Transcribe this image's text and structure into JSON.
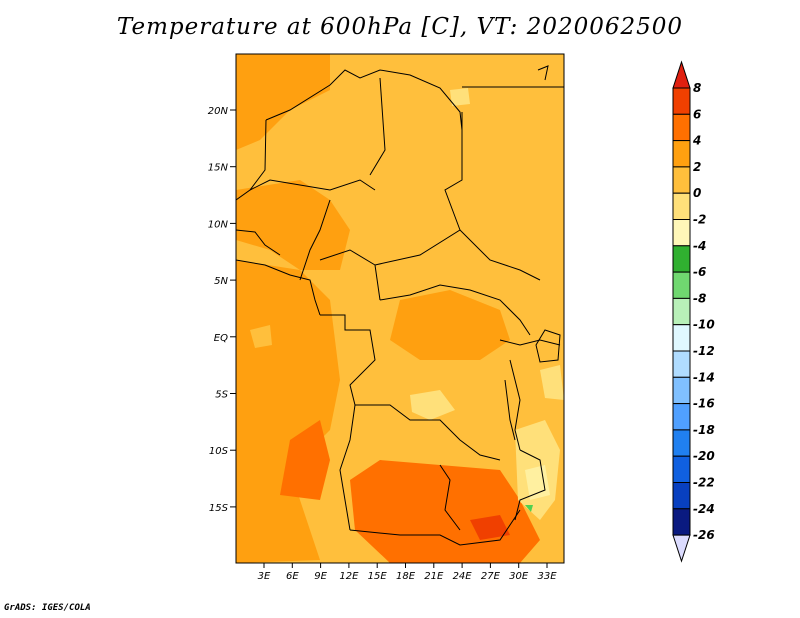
{
  "title": "Temperature at 600hPa [C], VT: 2020062500",
  "credit": "GrADS: IGES/COLA",
  "map": {
    "lat_ticks": [
      "20N",
      "15N",
      "10N",
      "5N",
      "EQ",
      "5S",
      "10S",
      "15S"
    ],
    "lon_ticks": [
      "3E",
      "6E",
      "9E",
      "12E",
      "15E",
      "18E",
      "21E",
      "24E",
      "27E",
      "30E",
      "33E"
    ],
    "field_colors": {
      "c0": "#ffe07a",
      "c2": "#ffbf3c",
      "c4": "#ffa010",
      "c6": "#ff7000",
      "c8": "#f04000",
      "cm2": "#fff0a0",
      "cm6": "#50d050"
    }
  },
  "colorbar": {
    "levels": [
      "8",
      "6",
      "4",
      "2",
      "0",
      "-2",
      "-4",
      "-6",
      "-8",
      "-10",
      "-12",
      "-14",
      "-16",
      "-18",
      "-20",
      "-22",
      "-24",
      "-26"
    ],
    "colors": [
      "#e02010",
      "#f04000",
      "#ff7000",
      "#ffa010",
      "#ffbf3c",
      "#ffe07a",
      "#fff7b8",
      "#30b030",
      "#70d870",
      "#b8f0b8",
      "#e0f8ff",
      "#b0dcff",
      "#80c0ff",
      "#50a0ff",
      "#2080f0",
      "#1060e0",
      "#0840c0",
      "#0a1a80",
      "#dcdcff"
    ]
  }
}
